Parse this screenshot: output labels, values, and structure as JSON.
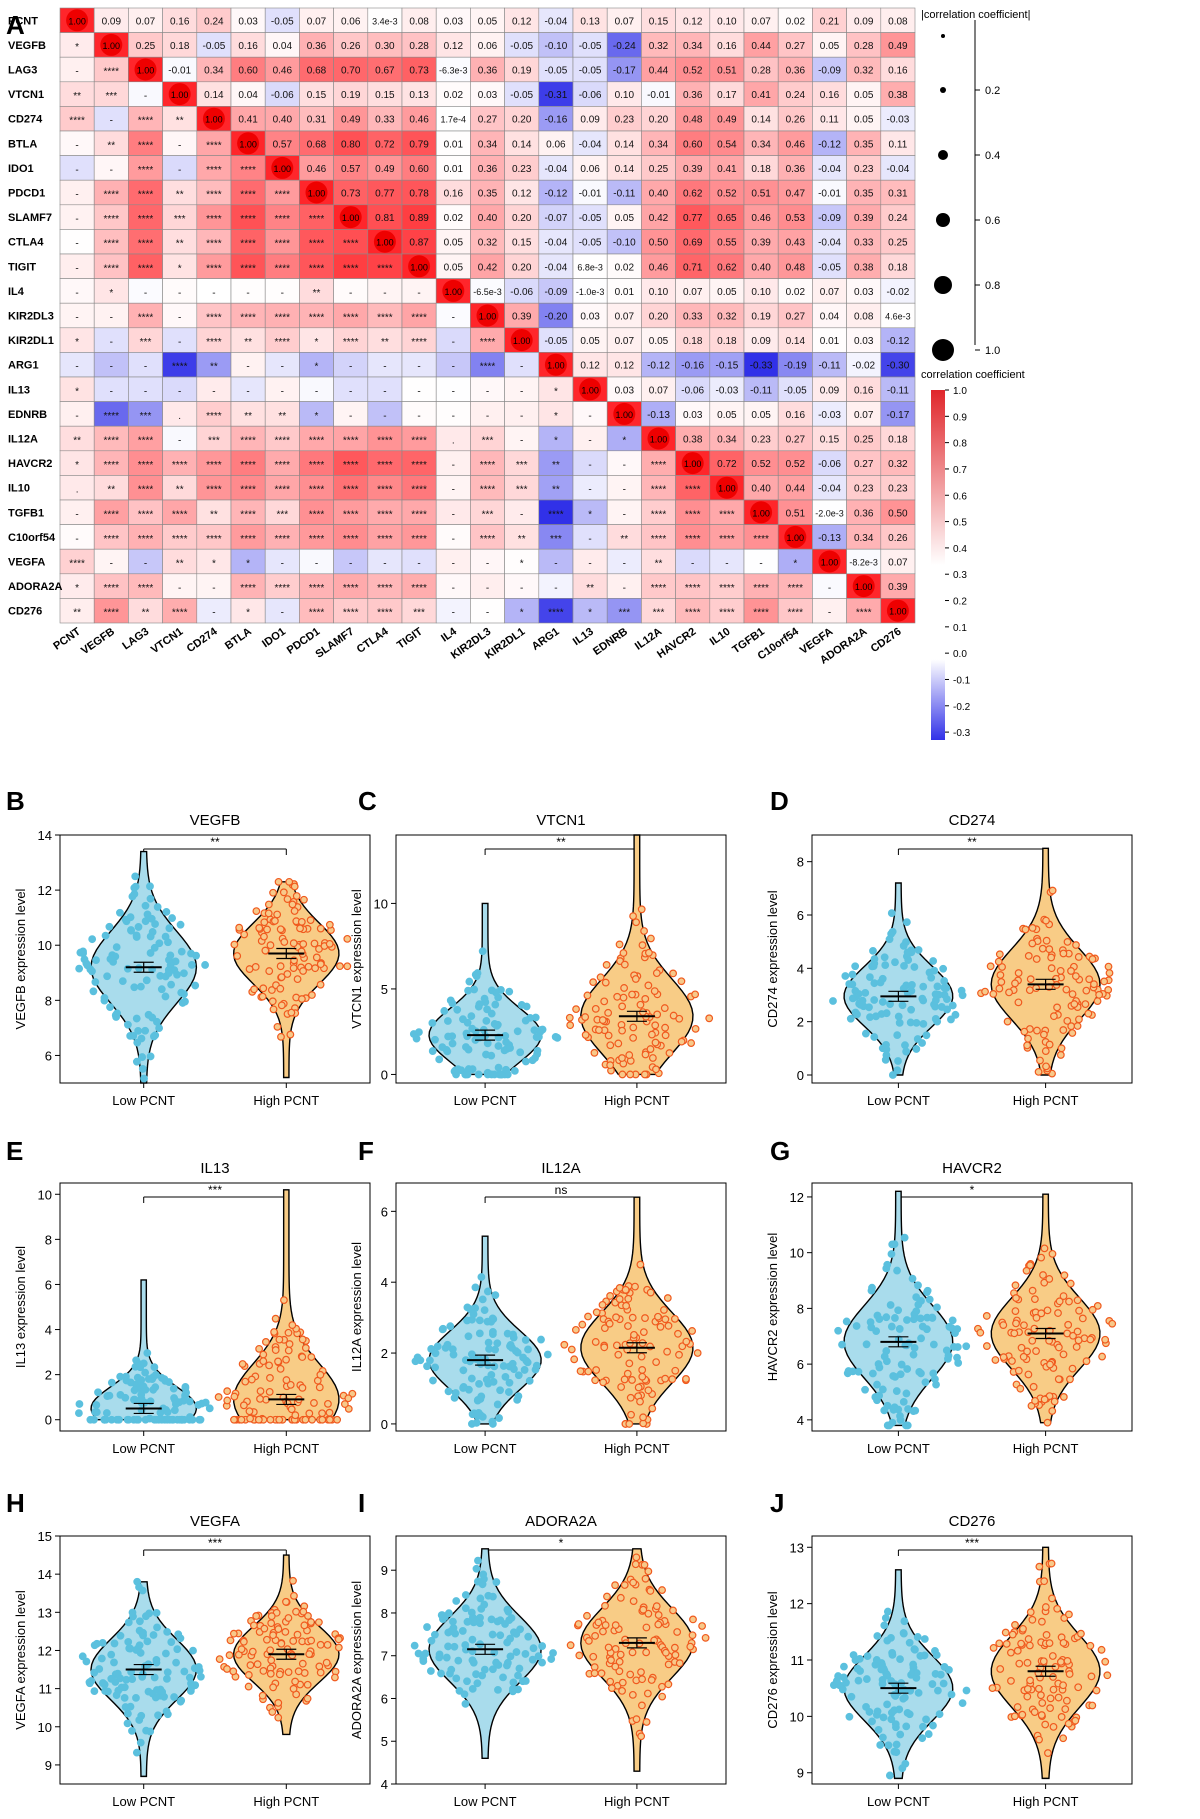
{
  "figure": {
    "panel_a": {
      "label": "A",
      "genes": [
        "PCNT",
        "VEGFB",
        "LAG3",
        "VTCN1",
        "CD274",
        "BTLA",
        "IDO1",
        "PDCD1",
        "SLAMF7",
        "CTLA4",
        "TIGIT",
        "IL4",
        "KIR2DL3",
        "KIR2DL1",
        "ARG1",
        "IL13",
        "EDNRB",
        "IL12A",
        "HAVCR2",
        "IL10",
        "TGFB1",
        "C10orf54",
        "VEGFA",
        "ADORA2A",
        "CD276"
      ],
      "size_legend_title": "|correlation coefficient|",
      "size_legend_ticks": [
        "0.2",
        "0.4",
        "0.6",
        "0.8",
        "1.0"
      ],
      "color_legend_title": "correlation coefficient",
      "color_legend_ticks": [
        "1.0",
        "0.9",
        "0.8",
        "0.7",
        "0.6",
        "0.5",
        "0.4",
        "0.3",
        "0.2",
        "0.1",
        "0.0",
        "-0.1",
        "-0.2",
        "-0.3"
      ]
    },
    "violin_xlabels": [
      "Low PCNT",
      "High PCNT"
    ],
    "colors": {
      "low": "#5bc0de",
      "low_fill": "#a9dcec",
      "high": "#f05a1e",
      "high_fill": "#f8cc86",
      "pos": "#e8262b",
      "neg": "#3131e8"
    }
  },
  "chart_data": [
    {
      "type": "heatmap",
      "panel": "A",
      "rows": [
        "PCNT",
        "VEGFB",
        "LAG3",
        "VTCN1",
        "CD274",
        "BTLA",
        "IDO1",
        "PDCD1",
        "SLAMF7",
        "CTLA4",
        "TIGIT",
        "IL4",
        "KIR2DL3",
        "KIR2DL1",
        "ARG1",
        "IL13",
        "EDNRB",
        "IL12A",
        "HAVCR2",
        "IL10",
        "TGFB1",
        "C10orf54",
        "VEGFA",
        "ADORA2A",
        "CD276"
      ],
      "upper_triangle_correlations": [
        [
          "1.00",
          "0.09",
          "0.07",
          "0.16",
          "0.24",
          "0.03",
          "-0.05",
          "0.07",
          "0.06",
          "3.4e-3",
          "0.08",
          "0.03",
          "0.05",
          "0.12",
          "-0.04",
          "0.13",
          "0.07",
          "0.15",
          "0.12",
          "0.10",
          "0.07",
          "0.02",
          "0.21",
          "0.09",
          "0.08"
        ],
        [
          "*",
          "1.00",
          "0.25",
          "0.18",
          "-0.05",
          "0.16",
          "0.04",
          "0.36",
          "0.26",
          "0.30",
          "0.28",
          "0.12",
          "0.06",
          "-0.05",
          "-0.10",
          "-0.05",
          "-0.24",
          "0.32",
          "0.34",
          "0.16",
          "0.44",
          "0.27",
          "0.05",
          "0.28",
          "0.49"
        ],
        [
          "-",
          "****",
          "1.00",
          "-0.01",
          "0.34",
          "0.60",
          "0.46",
          "0.68",
          "0.70",
          "0.67",
          "0.73",
          "-6.3e-3",
          "0.36",
          "0.19",
          "-0.05",
          "-0.05",
          "-0.17",
          "0.44",
          "0.52",
          "0.51",
          "0.28",
          "0.36",
          "-0.09",
          "0.32",
          "0.16"
        ],
        [
          "**",
          "***",
          "-",
          "1.00",
          "0.14",
          "0.04",
          "-0.06",
          "0.15",
          "0.19",
          "0.15",
          "0.13",
          "0.02",
          "0.03",
          "-0.05",
          "-0.31",
          "-0.06",
          "0.10",
          "-0.01",
          "0.36",
          "0.17",
          "0.41",
          "0.24",
          "0.16",
          "0.05",
          "0.38"
        ],
        [
          "****",
          "-",
          "****",
          "**",
          "1.00",
          "0.41",
          "0.40",
          "0.31",
          "0.49",
          "0.33",
          "0.46",
          "1.7e-4",
          "0.27",
          "0.20",
          "-0.16",
          "0.09",
          "0.23",
          "0.20",
          "0.48",
          "0.49",
          "0.14",
          "0.26",
          "0.11",
          "0.05",
          "-0.03"
        ],
        [
          "-",
          "**",
          "****",
          "-",
          "****",
          "1.00",
          "0.57",
          "0.68",
          "0.80",
          "0.72",
          "0.79",
          "0.01",
          "0.34",
          "0.14",
          "0.06",
          "-0.04",
          "0.14",
          "0.34",
          "0.60",
          "0.54",
          "0.34",
          "0.46",
          "-0.12",
          "0.35",
          "0.11"
        ],
        [
          "-",
          "-",
          "****",
          "-",
          "****",
          "****",
          "1.00",
          "0.46",
          "0.57",
          "0.49",
          "0.60",
          "0.01",
          "0.36",
          "0.23",
          "-0.04",
          "0.06",
          "0.14",
          "0.25",
          "0.39",
          "0.41",
          "0.18",
          "0.36",
          "-0.04",
          "0.23",
          "-0.04"
        ],
        [
          "-",
          "****",
          "****",
          "**",
          "****",
          "****",
          "****",
          "1.00",
          "0.73",
          "0.77",
          "0.78",
          "0.16",
          "0.35",
          "0.12",
          "-0.12",
          "-0.01",
          "-0.11",
          "0.40",
          "0.62",
          "0.52",
          "0.51",
          "0.47",
          "-0.01",
          "0.35",
          "0.31"
        ],
        [
          "-",
          "****",
          "****",
          "***",
          "****",
          "****",
          "****",
          "****",
          "1.00",
          "0.81",
          "0.89",
          "0.02",
          "0.40",
          "0.20",
          "-0.07",
          "-0.05",
          "0.05",
          "0.42",
          "0.77",
          "0.65",
          "0.46",
          "0.53",
          "-0.09",
          "0.39",
          "0.24"
        ],
        [
          "-",
          "****",
          "****",
          "**",
          "****",
          "****",
          "****",
          "****",
          "****",
          "1.00",
          "0.87",
          "0.05",
          "0.32",
          "0.15",
          "-0.04",
          "-0.05",
          "-0.10",
          "0.50",
          "0.69",
          "0.55",
          "0.39",
          "0.43",
          "-0.04",
          "0.33",
          "0.25"
        ],
        [
          "-",
          "****",
          "****",
          "*",
          "****",
          "****",
          "****",
          "****",
          "****",
          "****",
          "1.00",
          "0.05",
          "0.42",
          "0.20",
          "-0.04",
          "6.8e-3",
          "0.02",
          "0.46",
          "0.71",
          "0.62",
          "0.40",
          "0.48",
          "-0.05",
          "0.38",
          "0.18"
        ],
        [
          "-",
          "*",
          "-",
          "-",
          "-",
          "-",
          "-",
          "**",
          "-",
          "-",
          "-",
          "1.00",
          "-6.5e-3",
          "-0.06",
          "-0.09",
          "-1.0e-3",
          "0.01",
          "0.10",
          "0.07",
          "0.05",
          "0.10",
          "0.02",
          "0.07",
          "0.03",
          "-0.02"
        ],
        [
          "-",
          "-",
          "****",
          "-",
          "****",
          "****",
          "****",
          "****",
          "****",
          "****",
          "****",
          "-",
          "1.00",
          "0.39",
          "-0.20",
          "0.03",
          "0.07",
          "0.20",
          "0.33",
          "0.32",
          "0.19",
          "0.27",
          "0.04",
          "0.08",
          "4.6e-3"
        ],
        [
          "*",
          "-",
          "***",
          "-",
          "****",
          "**",
          "****",
          "*",
          "****",
          "**",
          "****",
          "-",
          "****",
          "1.00",
          "-0.05",
          "0.05",
          "0.07",
          "0.05",
          "0.18",
          "0.18",
          "0.09",
          "0.14",
          "0.01",
          "0.03",
          "-0.12"
        ],
        [
          "-",
          "-",
          "-",
          "****",
          "**",
          "-",
          "-",
          "*",
          "-",
          "-",
          "-",
          "-",
          "****",
          "-",
          "1.00",
          "0.12",
          "0.12",
          "-0.12",
          "-0.16",
          "-0.15",
          "-0.33",
          "-0.19",
          "-0.11",
          "-0.02",
          "-0.30"
        ],
        [
          "*",
          "-",
          "-",
          "-",
          "-",
          "-",
          "-",
          "-",
          "-",
          "-",
          "-",
          "-",
          "-",
          "-",
          "*",
          "1.00",
          "0.03",
          "0.07",
          "-0.06",
          "-0.03",
          "-0.11",
          "-0.05",
          "0.09",
          "0.16",
          "-0.11"
        ],
        [
          "-",
          "****",
          "***",
          ".",
          "****",
          "**",
          "**",
          "*",
          "-",
          "-",
          "-",
          "-",
          "-",
          "-",
          "*",
          "-",
          "1.00",
          "-0.13",
          "0.03",
          "0.05",
          "0.05",
          "0.16",
          "-0.03",
          "0.07",
          "-0.17"
        ],
        [
          "**",
          "****",
          "****",
          "-",
          "***",
          "****",
          "****",
          "****",
          "****",
          "****",
          "****",
          ".",
          "***",
          "-",
          "*",
          "-",
          "*",
          "1.00",
          "0.38",
          "0.34",
          "0.23",
          "0.27",
          "0.15",
          "0.25",
          "0.18"
        ],
        [
          "*",
          "****",
          "****",
          "****",
          "****",
          "****",
          "****",
          "****",
          "****",
          "****",
          "****",
          "-",
          "****",
          "***",
          "**",
          "-",
          "-",
          "****",
          "1.00",
          "0.72",
          "0.52",
          "0.52",
          "-0.06",
          "0.27",
          "0.32"
        ],
        [
          ".",
          "**",
          "****",
          "**",
          "****",
          "****",
          "****",
          "****",
          "****",
          "****",
          "****",
          "-",
          "****",
          "***",
          "**",
          "-",
          "-",
          "****",
          "****",
          "1.00",
          "0.40",
          "0.44",
          "-0.04",
          "0.23",
          "0.23"
        ],
        [
          "-",
          "****",
          "****",
          "****",
          "**",
          "****",
          "***",
          "****",
          "****",
          "****",
          "****",
          "-",
          "***",
          "-",
          "****",
          "*",
          "-",
          "****",
          "****",
          "****",
          "1.00",
          "0.51",
          "-2.0e-3",
          "0.36",
          "0.50"
        ],
        [
          "-",
          "****",
          "****",
          "****",
          "****",
          "****",
          "****",
          "****",
          "****",
          "****",
          "****",
          "-",
          "****",
          "**",
          "***",
          "-",
          "**",
          "****",
          "****",
          "****",
          "****",
          "1.00",
          "-0.13",
          "0.34",
          "0.26"
        ],
        [
          "****",
          "-",
          "-",
          "**",
          "*",
          "*",
          "-",
          "-",
          "-",
          "-",
          "-",
          "-",
          "-",
          "*",
          "-",
          "-",
          "-",
          "**",
          "-",
          "-",
          "-",
          "*",
          "1.00",
          "-8.2e-3",
          "0.07"
        ],
        [
          "*",
          "****",
          "****",
          "-",
          "-",
          "****",
          "****",
          "****",
          "****",
          "****",
          "****",
          "-",
          "-",
          "-",
          "-",
          "**",
          "-",
          "****",
          "****",
          "****",
          "****",
          "****",
          "-",
          "1.00",
          "0.39"
        ],
        [
          "**",
          "****",
          "**",
          "****",
          "-",
          "*",
          "-",
          "****",
          "****",
          "****",
          "***",
          "-",
          "-",
          "*",
          "****",
          "*",
          "***",
          "***",
          "****",
          "****",
          "****",
          "****",
          "-",
          "****",
          "1.00"
        ]
      ]
    },
    {
      "type": "violin",
      "panel": "B",
      "title": "VEGFB",
      "ylabel": "VEGFB expression level",
      "ylim": [
        5,
        14
      ],
      "yticks": [
        6,
        8,
        10,
        12,
        14
      ],
      "significance": "**",
      "groups": [
        {
          "name": "Low PCNT",
          "mean": 9.2,
          "median_range": [
            5.0,
            13.4
          ]
        },
        {
          "name": "High PCNT",
          "mean": 9.7,
          "range": [
            5.2,
            12.3
          ]
        }
      ]
    },
    {
      "type": "violin",
      "panel": "C",
      "title": "VTCN1",
      "ylabel": "VTCN1 expression level",
      "ylim": [
        -0.5,
        14
      ],
      "yticks": [
        0,
        5,
        10
      ],
      "significance": "**",
      "groups": [
        {
          "name": "Low PCNT",
          "mean": 2.3,
          "range": [
            0,
            10
          ]
        },
        {
          "name": "High PCNT",
          "mean": 3.4,
          "range": [
            0,
            14
          ]
        }
      ]
    },
    {
      "type": "violin",
      "panel": "D",
      "title": "CD274",
      "ylabel": "CD274 expression level",
      "ylim": [
        -0.3,
        9
      ],
      "yticks": [
        0,
        2,
        4,
        6,
        8
      ],
      "significance": "**",
      "groups": [
        {
          "name": "Low PCNT",
          "mean": 2.95,
          "range": [
            0,
            7.2
          ]
        },
        {
          "name": "High PCNT",
          "mean": 3.4,
          "range": [
            0,
            8.5
          ]
        }
      ]
    },
    {
      "type": "violin",
      "panel": "E",
      "title": "IL13",
      "ylabel": "IL13 expression level",
      "ylim": [
        -0.5,
        10.5
      ],
      "yticks": [
        0,
        2,
        4,
        6,
        8,
        10
      ],
      "significance": "***",
      "groups": [
        {
          "name": "Low PCNT",
          "mean": 0.5,
          "range": [
            0,
            6.2
          ]
        },
        {
          "name": "High PCNT",
          "mean": 0.9,
          "range": [
            0,
            10.2
          ]
        }
      ]
    },
    {
      "type": "violin",
      "panel": "F",
      "title": "IL12A",
      "ylabel": "IL12A expression level",
      "ylim": [
        -0.2,
        6.8
      ],
      "yticks": [
        0,
        2,
        4,
        6
      ],
      "significance": "ns",
      "groups": [
        {
          "name": "Low PCNT",
          "mean": 1.8,
          "range": [
            0,
            5.3
          ]
        },
        {
          "name": "High PCNT",
          "mean": 2.15,
          "range": [
            0,
            6.4
          ]
        }
      ]
    },
    {
      "type": "violin",
      "panel": "G",
      "title": "HAVCR2",
      "ylabel": "HAVCR2 expression level",
      "ylim": [
        3.6,
        12.5
      ],
      "yticks": [
        4,
        6,
        8,
        10,
        12
      ],
      "significance": "*",
      "groups": [
        {
          "name": "Low PCNT",
          "mean": 6.8,
          "range": [
            3.8,
            12.2
          ]
        },
        {
          "name": "High PCNT",
          "mean": 7.1,
          "range": [
            3.9,
            12.1
          ]
        }
      ]
    },
    {
      "type": "violin",
      "panel": "H",
      "title": "VEGFA",
      "ylabel": "VEGFA expression level",
      "ylim": [
        8.5,
        15
      ],
      "yticks": [
        9,
        10,
        11,
        12,
        13,
        14,
        15
      ],
      "significance": "***",
      "groups": [
        {
          "name": "Low PCNT",
          "mean": 11.5,
          "range": [
            8.7,
            13.8
          ]
        },
        {
          "name": "High PCNT",
          "mean": 11.9,
          "range": [
            9.8,
            14.5
          ]
        }
      ]
    },
    {
      "type": "violin",
      "panel": "I",
      "title": "ADORA2A",
      "ylabel": "ADORA2A expression level",
      "ylim": [
        4,
        9.8
      ],
      "yticks": [
        4,
        5,
        6,
        7,
        8,
        9
      ],
      "significance": "*",
      "groups": [
        {
          "name": "Low PCNT",
          "mean": 7.15,
          "range": [
            4.6,
            9.5
          ]
        },
        {
          "name": "High PCNT",
          "mean": 7.3,
          "range": [
            4.3,
            9.5
          ]
        }
      ]
    },
    {
      "type": "violin",
      "panel": "J",
      "title": "CD276",
      "ylabel": "CD276 expression level",
      "ylim": [
        8.8,
        13.2
      ],
      "yticks": [
        9,
        10,
        11,
        12,
        13
      ],
      "significance": "***",
      "groups": [
        {
          "name": "Low PCNT",
          "mean": 10.5,
          "range": [
            8.9,
            12.6
          ]
        },
        {
          "name": "High PCNT",
          "mean": 10.8,
          "range": [
            8.9,
            13
          ]
        }
      ]
    }
  ]
}
